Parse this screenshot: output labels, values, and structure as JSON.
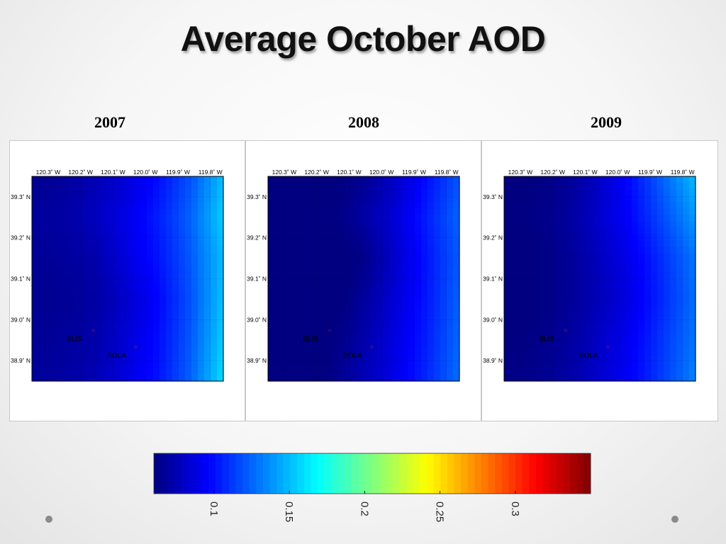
{
  "slide": {
    "title": "Average October AOD"
  },
  "chart_data": [
    {
      "type": "heatmap",
      "title": "2007",
      "x_ticks": [
        "120.3˚ W",
        "120.2˚ W",
        "120.1˚ W",
        "120.0˚ W",
        "119.9˚ W",
        "119.8˚ W"
      ],
      "y_ticks": [
        "39.3˚ N",
        "39.2˚ N",
        "39.1˚ N",
        "39.0˚ N",
        "38.9˚ N"
      ],
      "stations": [
        {
          "name": "BLIS",
          "lon": -120.16,
          "lat": 38.97
        },
        {
          "name": "SOLA",
          "lon": -120.03,
          "lat": 38.93
        }
      ],
      "x_lon": [
        -120.35,
        -120.25,
        -120.15,
        -120.05,
        -119.95,
        -119.85,
        -119.76
      ],
      "y_lat": [
        39.35,
        39.25,
        39.15,
        39.05,
        38.95,
        38.85
      ],
      "aod": [
        [
          0.065,
          0.068,
          0.075,
          0.085,
          0.1,
          0.12,
          0.15
        ],
        [
          0.068,
          0.07,
          0.078,
          0.09,
          0.105,
          0.125,
          0.155
        ],
        [
          0.066,
          0.068,
          0.072,
          0.088,
          0.102,
          0.122,
          0.15
        ],
        [
          0.065,
          0.066,
          0.07,
          0.082,
          0.098,
          0.12,
          0.152
        ],
        [
          0.066,
          0.068,
          0.072,
          0.085,
          0.1,
          0.122,
          0.155
        ],
        [
          0.068,
          0.07,
          0.075,
          0.088,
          0.102,
          0.125,
          0.16
        ]
      ]
    },
    {
      "type": "heatmap",
      "title": "2008",
      "x_ticks": [
        "120.3˚ W",
        "120.2˚ W",
        "120.1˚ W",
        "120.0˚ W",
        "119.9˚ W",
        "119.8˚ W"
      ],
      "y_ticks": [
        "39.3˚ N",
        "39.2˚ N",
        "39.1˚ N",
        "39.0˚ N",
        "38.9˚ N"
      ],
      "stations": [
        {
          "name": "BLIS",
          "lon": -120.16,
          "lat": 38.97
        },
        {
          "name": "SOLA",
          "lon": -120.03,
          "lat": 38.93
        }
      ],
      "x_lon": [
        -120.35,
        -120.25,
        -120.15,
        -120.05,
        -119.95,
        -119.85,
        -119.76
      ],
      "y_lat": [
        39.35,
        39.25,
        39.15,
        39.05,
        38.95,
        38.85
      ],
      "aod": [
        [
          0.055,
          0.056,
          0.058,
          0.065,
          0.08,
          0.1,
          0.12
        ],
        [
          0.055,
          0.056,
          0.06,
          0.07,
          0.085,
          0.105,
          0.125
        ],
        [
          0.054,
          0.055,
          0.057,
          0.062,
          0.082,
          0.102,
          0.122
        ],
        [
          0.054,
          0.055,
          0.056,
          0.068,
          0.085,
          0.103,
          0.124
        ],
        [
          0.055,
          0.056,
          0.06,
          0.072,
          0.088,
          0.105,
          0.126
        ],
        [
          0.056,
          0.058,
          0.062,
          0.075,
          0.09,
          0.108,
          0.128
        ]
      ]
    },
    {
      "type": "heatmap",
      "title": "2009",
      "x_ticks": [
        "120.3˚ W",
        "120.2˚ W",
        "120.1˚ W",
        "120.0˚ W",
        "119.9˚ W",
        "119.8˚ W"
      ],
      "y_ticks": [
        "39.3˚ N",
        "39.2˚ N",
        "39.1˚ N",
        "39.0˚ N",
        "38.9˚ N"
      ],
      "stations": [
        {
          "name": "BLIS",
          "lon": -120.16,
          "lat": 38.97
        },
        {
          "name": "SOLA",
          "lon": -120.03,
          "lat": 38.93
        }
      ],
      "x_lon": [
        -120.35,
        -120.25,
        -120.15,
        -120.05,
        -119.95,
        -119.85,
        -119.76
      ],
      "y_lat": [
        39.35,
        39.25,
        39.15,
        39.05,
        38.95,
        38.85
      ],
      "aod": [
        [
          0.058,
          0.06,
          0.066,
          0.08,
          0.1,
          0.125,
          0.15
        ],
        [
          0.06,
          0.062,
          0.068,
          0.082,
          0.098,
          0.118,
          0.14
        ],
        [
          0.058,
          0.06,
          0.066,
          0.078,
          0.092,
          0.11,
          0.13
        ],
        [
          0.058,
          0.06,
          0.066,
          0.076,
          0.09,
          0.108,
          0.128
        ],
        [
          0.06,
          0.062,
          0.068,
          0.08,
          0.094,
          0.112,
          0.13
        ],
        [
          0.062,
          0.064,
          0.07,
          0.082,
          0.096,
          0.114,
          0.134
        ]
      ]
    }
  ],
  "colorbar": {
    "colormap": "jet",
    "vmin": 0.06,
    "vmax": 0.35,
    "ticks": [
      "0.1",
      "0.15",
      "0.2",
      "0.25",
      "0.3"
    ],
    "tick_values": [
      0.1,
      0.15,
      0.2,
      0.25,
      0.3
    ]
  },
  "colors": {
    "station_marker": "#d03030",
    "nav_dot": "#8a8a8a"
  }
}
